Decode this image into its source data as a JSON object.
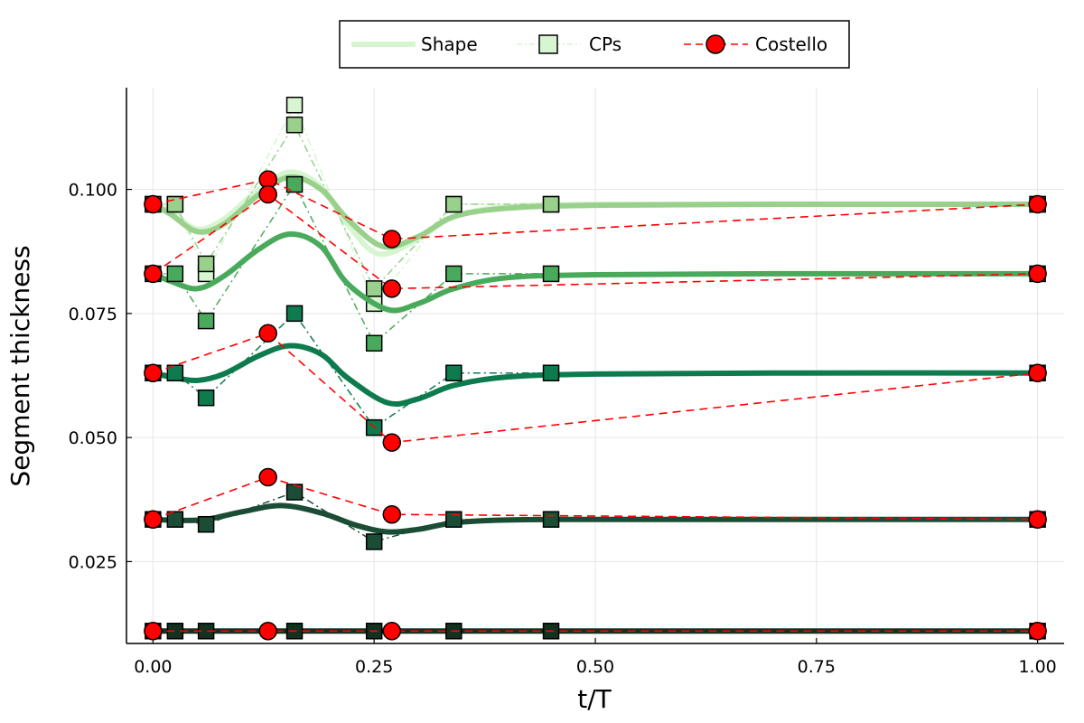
{
  "chart_data": {
    "type": "line",
    "xlabel": "t/T",
    "ylabel": "Segment thickness",
    "xlim": [
      -0.03,
      1.03
    ],
    "ylim": [
      0.0085,
      0.1205
    ],
    "xticks": [
      0.0,
      0.25,
      0.5,
      0.75,
      1.0
    ],
    "xtick_labels": [
      "0.00",
      "0.25",
      "0.50",
      "0.75",
      "1.00"
    ],
    "yticks": [
      0.025,
      0.05,
      0.075,
      0.1
    ],
    "ytick_labels": [
      "0.025",
      "0.050",
      "0.075",
      "0.100"
    ],
    "grid": true,
    "legend_position": "top-outside",
    "legend": [
      {
        "label": "Shape",
        "style": "thick-line",
        "color": "#d6f5d0"
      },
      {
        "label": "CPs",
        "style": "dashdot-square",
        "color": "#d6f5d0"
      },
      {
        "label": "Costello",
        "style": "dashed-circle",
        "color": "#ff0000"
      }
    ],
    "series": [
      {
        "color": "#d6f5d0",
        "shape": {
          "x": [
            0.0,
            0.02,
            0.05,
            0.08,
            0.12,
            0.155,
            0.19,
            0.22,
            0.255,
            0.3,
            0.34,
            0.4,
            0.5,
            0.7,
            1.0
          ],
          "y": [
            0.097,
            0.0955,
            0.092,
            0.094,
            0.1,
            0.1035,
            0.1005,
            0.093,
            0.087,
            0.09,
            0.0945,
            0.0965,
            0.097,
            0.097,
            0.097
          ]
        },
        "cps": {
          "x": [
            0.0,
            0.025,
            0.06,
            0.16,
            0.25,
            0.34,
            0.45,
            1.0
          ],
          "y": [
            0.097,
            0.097,
            0.083,
            0.117,
            0.077,
            0.097,
            0.097,
            0.097
          ]
        }
      },
      {
        "color": "#98d08c",
        "shape": {
          "x": [
            0.0,
            0.02,
            0.05,
            0.08,
            0.12,
            0.155,
            0.19,
            0.22,
            0.26,
            0.3,
            0.34,
            0.4,
            0.5,
            0.7,
            1.0
          ],
          "y": [
            0.097,
            0.095,
            0.0915,
            0.093,
            0.099,
            0.1025,
            0.1,
            0.094,
            0.0885,
            0.0905,
            0.0945,
            0.0962,
            0.0968,
            0.097,
            0.097
          ]
        },
        "cps": {
          "x": [
            0.0,
            0.025,
            0.06,
            0.16,
            0.25,
            0.34,
            0.45,
            1.0
          ],
          "y": [
            0.097,
            0.097,
            0.085,
            0.113,
            0.08,
            0.097,
            0.097,
            0.097
          ]
        }
      },
      {
        "color": "#4aaa5c",
        "shape": {
          "x": [
            0.0,
            0.02,
            0.05,
            0.08,
            0.12,
            0.155,
            0.19,
            0.22,
            0.265,
            0.3,
            0.34,
            0.4,
            0.5,
            0.7,
            1.0
          ],
          "y": [
            0.083,
            0.0815,
            0.08,
            0.0825,
            0.088,
            0.091,
            0.0885,
            0.081,
            0.0758,
            0.077,
            0.08,
            0.0822,
            0.0828,
            0.083,
            0.083
          ]
        },
        "cps": {
          "x": [
            0.0,
            0.025,
            0.06,
            0.16,
            0.25,
            0.34,
            0.45,
            1.0
          ],
          "y": [
            0.083,
            0.083,
            0.0735,
            0.101,
            0.069,
            0.083,
            0.083,
            0.083
          ]
        }
      },
      {
        "color": "#0e7b4e",
        "shape": {
          "x": [
            0.0,
            0.02,
            0.05,
            0.08,
            0.12,
            0.155,
            0.19,
            0.22,
            0.265,
            0.3,
            0.34,
            0.4,
            0.5,
            0.7,
            1.0
          ],
          "y": [
            0.063,
            0.0622,
            0.0615,
            0.0628,
            0.0665,
            0.0685,
            0.0668,
            0.062,
            0.057,
            0.0578,
            0.0605,
            0.0622,
            0.0628,
            0.063,
            0.063
          ]
        },
        "cps": {
          "x": [
            0.0,
            0.025,
            0.06,
            0.16,
            0.25,
            0.34,
            0.45,
            1.0
          ],
          "y": [
            0.063,
            0.063,
            0.058,
            0.075,
            0.052,
            0.063,
            0.063,
            0.063
          ]
        }
      },
      {
        "color": "#1b4d36",
        "shape": {
          "x": [
            0.0,
            0.03,
            0.06,
            0.1,
            0.145,
            0.19,
            0.23,
            0.265,
            0.3,
            0.35,
            0.45,
            0.7,
            1.0
          ],
          "y": [
            0.0335,
            0.0333,
            0.0335,
            0.035,
            0.0363,
            0.0348,
            0.0323,
            0.031,
            0.0315,
            0.033,
            0.0335,
            0.0335,
            0.0335
          ]
        },
        "cps": {
          "x": [
            0.0,
            0.025,
            0.06,
            0.16,
            0.25,
            0.34,
            0.45,
            1.0
          ],
          "y": [
            0.0335,
            0.0335,
            0.0325,
            0.039,
            0.029,
            0.0335,
            0.0335,
            0.0335
          ]
        }
      },
      {
        "color": "#14311f",
        "shape": {
          "x": [
            0.0,
            1.0
          ],
          "y": [
            0.011,
            0.011
          ]
        },
        "cps": {
          "x": [
            0.0,
            0.025,
            0.06,
            0.16,
            0.25,
            0.34,
            0.45,
            1.0
          ],
          "y": [
            0.011,
            0.011,
            0.011,
            0.011,
            0.011,
            0.011,
            0.011,
            0.011
          ]
        }
      }
    ],
    "costello": [
      {
        "x": [
          0.0,
          0.13,
          0.27,
          1.0
        ],
        "y": [
          0.097,
          0.102,
          0.09,
          0.097
        ]
      },
      {
        "x": [
          0.0,
          0.13,
          0.27,
          1.0
        ],
        "y": [
          0.083,
          0.099,
          0.08,
          0.083
        ]
      },
      {
        "x": [
          0.0,
          0.13,
          0.27,
          1.0
        ],
        "y": [
          0.063,
          0.071,
          0.049,
          0.063
        ]
      },
      {
        "x": [
          0.0,
          0.13,
          0.27,
          1.0
        ],
        "y": [
          0.0335,
          0.042,
          0.0345,
          0.0335
        ]
      },
      {
        "x": [
          0.0,
          0.13,
          0.27,
          1.0
        ],
        "y": [
          0.011,
          0.011,
          0.011,
          0.011
        ]
      }
    ],
    "costello_color": "#ff0000"
  }
}
